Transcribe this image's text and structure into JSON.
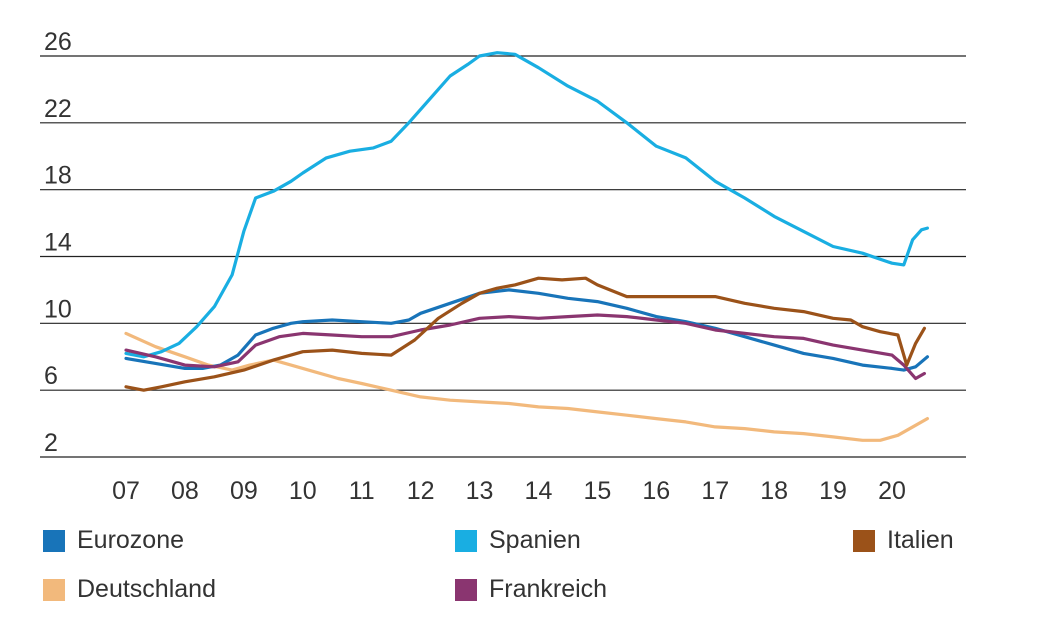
{
  "chart_data": {
    "type": "line",
    "x_ticks": [
      "07",
      "08",
      "09",
      "10",
      "11",
      "12",
      "13",
      "14",
      "15",
      "16",
      "17",
      "18",
      "19",
      "20"
    ],
    "y_ticks": [
      "2",
      "6",
      "10",
      "14",
      "18",
      "22",
      "26"
    ],
    "ylim": [
      2,
      26
    ],
    "xlim": [
      2007.0,
      2020.7
    ],
    "grid": "horizontal",
    "legend_position": "bottom",
    "series": [
      {
        "name": "Eurozone",
        "color": "#1874b9",
        "points": [
          [
            2007.0,
            7.9
          ],
          [
            2007.5,
            7.6
          ],
          [
            2008.0,
            7.3
          ],
          [
            2008.3,
            7.3
          ],
          [
            2008.6,
            7.5
          ],
          [
            2008.9,
            8.1
          ],
          [
            2009.2,
            9.3
          ],
          [
            2009.5,
            9.7
          ],
          [
            2009.8,
            10.0
          ],
          [
            2010.0,
            10.1
          ],
          [
            2010.5,
            10.2
          ],
          [
            2011.0,
            10.1
          ],
          [
            2011.5,
            10.0
          ],
          [
            2011.8,
            10.2
          ],
          [
            2012.0,
            10.6
          ],
          [
            2012.5,
            11.2
          ],
          [
            2013.0,
            11.8
          ],
          [
            2013.5,
            12.0
          ],
          [
            2014.0,
            11.8
          ],
          [
            2014.5,
            11.5
          ],
          [
            2015.0,
            11.3
          ],
          [
            2015.5,
            10.9
          ],
          [
            2016.0,
            10.4
          ],
          [
            2016.5,
            10.1
          ],
          [
            2017.0,
            9.7
          ],
          [
            2017.5,
            9.2
          ],
          [
            2018.0,
            8.7
          ],
          [
            2018.5,
            8.2
          ],
          [
            2019.0,
            7.9
          ],
          [
            2019.5,
            7.5
          ],
          [
            2020.0,
            7.3
          ],
          [
            2020.2,
            7.2
          ],
          [
            2020.4,
            7.4
          ],
          [
            2020.6,
            8.0
          ]
        ]
      },
      {
        "name": "Spanien",
        "color": "#19aee2",
        "points": [
          [
            2007.0,
            8.2
          ],
          [
            2007.3,
            8.0
          ],
          [
            2007.6,
            8.3
          ],
          [
            2007.9,
            8.8
          ],
          [
            2008.2,
            9.8
          ],
          [
            2008.5,
            11.0
          ],
          [
            2008.8,
            12.9
          ],
          [
            2009.0,
            15.5
          ],
          [
            2009.2,
            17.5
          ],
          [
            2009.5,
            17.9
          ],
          [
            2009.8,
            18.5
          ],
          [
            2010.0,
            19.0
          ],
          [
            2010.4,
            19.9
          ],
          [
            2010.8,
            20.3
          ],
          [
            2011.2,
            20.5
          ],
          [
            2011.5,
            20.9
          ],
          [
            2011.8,
            22.0
          ],
          [
            2012.2,
            23.6
          ],
          [
            2012.5,
            24.8
          ],
          [
            2012.8,
            25.5
          ],
          [
            2013.0,
            26.0
          ],
          [
            2013.3,
            26.2
          ],
          [
            2013.6,
            26.1
          ],
          [
            2014.0,
            25.3
          ],
          [
            2014.5,
            24.2
          ],
          [
            2015.0,
            23.3
          ],
          [
            2015.5,
            22.0
          ],
          [
            2016.0,
            20.6
          ],
          [
            2016.5,
            19.9
          ],
          [
            2017.0,
            18.5
          ],
          [
            2017.5,
            17.5
          ],
          [
            2018.0,
            16.4
          ],
          [
            2018.5,
            15.5
          ],
          [
            2019.0,
            14.6
          ],
          [
            2019.5,
            14.2
          ],
          [
            2020.0,
            13.6
          ],
          [
            2020.2,
            13.5
          ],
          [
            2020.35,
            15.0
          ],
          [
            2020.5,
            15.6
          ],
          [
            2020.6,
            15.7
          ]
        ]
      },
      {
        "name": "Italien",
        "color": "#9b5219",
        "points": [
          [
            2007.0,
            6.2
          ],
          [
            2007.3,
            6.0
          ],
          [
            2007.6,
            6.2
          ],
          [
            2008.0,
            6.5
          ],
          [
            2008.5,
            6.8
          ],
          [
            2009.0,
            7.2
          ],
          [
            2009.5,
            7.8
          ],
          [
            2010.0,
            8.3
          ],
          [
            2010.5,
            8.4
          ],
          [
            2011.0,
            8.2
          ],
          [
            2011.5,
            8.1
          ],
          [
            2011.9,
            9.0
          ],
          [
            2012.3,
            10.3
          ],
          [
            2012.7,
            11.2
          ],
          [
            2013.0,
            11.8
          ],
          [
            2013.3,
            12.1
          ],
          [
            2013.6,
            12.3
          ],
          [
            2014.0,
            12.7
          ],
          [
            2014.4,
            12.6
          ],
          [
            2014.8,
            12.7
          ],
          [
            2015.0,
            12.3
          ],
          [
            2015.5,
            11.6
          ],
          [
            2016.0,
            11.6
          ],
          [
            2016.5,
            11.6
          ],
          [
            2017.0,
            11.6
          ],
          [
            2017.5,
            11.2
          ],
          [
            2018.0,
            10.9
          ],
          [
            2018.5,
            10.7
          ],
          [
            2019.0,
            10.3
          ],
          [
            2019.3,
            10.2
          ],
          [
            2019.5,
            9.8
          ],
          [
            2019.8,
            9.5
          ],
          [
            2020.1,
            9.3
          ],
          [
            2020.25,
            7.5
          ],
          [
            2020.4,
            8.8
          ],
          [
            2020.55,
            9.7
          ]
        ]
      },
      {
        "name": "Deutschland",
        "color": "#f2b97c",
        "points": [
          [
            2007.0,
            9.4
          ],
          [
            2007.5,
            8.6
          ],
          [
            2008.0,
            8.0
          ],
          [
            2008.4,
            7.5
          ],
          [
            2008.8,
            7.2
          ],
          [
            2009.1,
            7.5
          ],
          [
            2009.5,
            7.8
          ],
          [
            2009.8,
            7.5
          ],
          [
            2010.2,
            7.1
          ],
          [
            2010.6,
            6.7
          ],
          [
            2011.0,
            6.4
          ],
          [
            2011.5,
            6.0
          ],
          [
            2012.0,
            5.6
          ],
          [
            2012.5,
            5.4
          ],
          [
            2013.0,
            5.3
          ],
          [
            2013.5,
            5.2
          ],
          [
            2014.0,
            5.0
          ],
          [
            2014.5,
            4.9
          ],
          [
            2015.0,
            4.7
          ],
          [
            2015.5,
            4.5
          ],
          [
            2016.0,
            4.3
          ],
          [
            2016.5,
            4.1
          ],
          [
            2017.0,
            3.8
          ],
          [
            2017.5,
            3.7
          ],
          [
            2018.0,
            3.5
          ],
          [
            2018.5,
            3.4
          ],
          [
            2019.0,
            3.2
          ],
          [
            2019.5,
            3.0
          ],
          [
            2019.8,
            3.0
          ],
          [
            2020.1,
            3.3
          ],
          [
            2020.4,
            3.9
          ],
          [
            2020.6,
            4.3
          ]
        ]
      },
      {
        "name": "Frankreich",
        "color": "#8a3570",
        "points": [
          [
            2007.0,
            8.4
          ],
          [
            2007.5,
            8.0
          ],
          [
            2008.0,
            7.5
          ],
          [
            2008.5,
            7.4
          ],
          [
            2008.9,
            7.7
          ],
          [
            2009.2,
            8.7
          ],
          [
            2009.6,
            9.2
          ],
          [
            2010.0,
            9.4
          ],
          [
            2010.5,
            9.3
          ],
          [
            2011.0,
            9.2
          ],
          [
            2011.5,
            9.2
          ],
          [
            2012.0,
            9.6
          ],
          [
            2012.5,
            9.9
          ],
          [
            2013.0,
            10.3
          ],
          [
            2013.5,
            10.4
          ],
          [
            2014.0,
            10.3
          ],
          [
            2014.5,
            10.4
          ],
          [
            2015.0,
            10.5
          ],
          [
            2015.5,
            10.4
          ],
          [
            2016.0,
            10.2
          ],
          [
            2016.5,
            10.0
          ],
          [
            2017.0,
            9.6
          ],
          [
            2017.5,
            9.4
          ],
          [
            2018.0,
            9.2
          ],
          [
            2018.5,
            9.1
          ],
          [
            2019.0,
            8.7
          ],
          [
            2019.5,
            8.4
          ],
          [
            2020.0,
            8.1
          ],
          [
            2020.2,
            7.5
          ],
          [
            2020.4,
            6.7
          ],
          [
            2020.55,
            7.0
          ]
        ]
      }
    ]
  },
  "legend": {
    "items": [
      {
        "label": "Eurozone",
        "color": "#1874b9"
      },
      {
        "label": "Spanien",
        "color": "#19aee2"
      },
      {
        "label": "Italien",
        "color": "#9b5219"
      },
      {
        "label": "Deutschland",
        "color": "#f2b97c"
      },
      {
        "label": "Frankreich",
        "color": "#8a3570"
      }
    ]
  }
}
